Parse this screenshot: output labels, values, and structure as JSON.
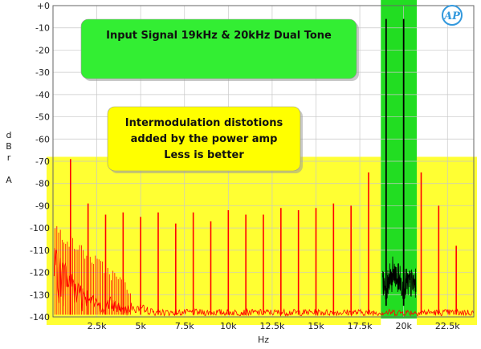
{
  "chart_data": {
    "type": "line",
    "title": "",
    "xlabel": "Hz",
    "ylabel": "dBr A",
    "xlim": [
      0,
      24000
    ],
    "ylim": [
      -140,
      0
    ],
    "grid": true,
    "y_ticks": [
      0,
      -10,
      -20,
      -30,
      -40,
      -50,
      -60,
      -70,
      -80,
      -90,
      -100,
      -110,
      -120,
      -130,
      -140
    ],
    "y_tick_labels": [
      "+0",
      "-10",
      "-20",
      "-30",
      "-40",
      "-50",
      "-60",
      "-70",
      "-80",
      "-90",
      "-100",
      "-110",
      "-120",
      "-130",
      "-140"
    ],
    "x_ticks": [
      2500,
      5000,
      7500,
      10000,
      12500,
      15000,
      17500,
      20000,
      22500
    ],
    "x_tick_labels": [
      "2.5k",
      "5k",
      "7.5k",
      "10k",
      "12.5k",
      "15k",
      "17.5k",
      "20k",
      "22.5k"
    ],
    "series": [
      {
        "color": "#ff0000",
        "noise_floor_dB": -138,
        "peaks": [
          {
            "x": 1000,
            "y": -69
          },
          {
            "x": 2000,
            "y": -89
          },
          {
            "x": 3000,
            "y": -94
          },
          {
            "x": 4000,
            "y": -93
          },
          {
            "x": 5000,
            "y": -95
          },
          {
            "x": 6000,
            "y": -93
          },
          {
            "x": 7000,
            "y": -98
          },
          {
            "x": 8000,
            "y": -93
          },
          {
            "x": 9000,
            "y": -97
          },
          {
            "x": 10000,
            "y": -92
          },
          {
            "x": 11000,
            "y": -94
          },
          {
            "x": 12000,
            "y": -94
          },
          {
            "x": 13000,
            "y": -91
          },
          {
            "x": 14000,
            "y": -92
          },
          {
            "x": 15000,
            "y": -91
          },
          {
            "x": 16000,
            "y": -89
          },
          {
            "x": 17000,
            "y": -90
          },
          {
            "x": 18000,
            "y": -75
          },
          {
            "x": 21000,
            "y": -75
          },
          {
            "x": 22000,
            "y": -90
          },
          {
            "x": 23000,
            "y": -108
          }
        ]
      },
      {
        "color": "#000000",
        "peaks": [
          {
            "x": 19000,
            "y": -6
          },
          {
            "x": 20000,
            "y": -6
          }
        ]
      }
    ],
    "annotations": [
      {
        "lines": [
          "Input Signal 19kHz & 20kHz Dual Tone"
        ],
        "color": "#33ee33"
      },
      {
        "lines": [
          "Intermodulation distotions",
          "added by the power amp",
          "Less is better"
        ],
        "color": "#ffff00"
      }
    ],
    "highlight_colors": {
      "yellow": "#ffff33",
      "green": "#22dd22"
    },
    "logo_text": "AP"
  }
}
